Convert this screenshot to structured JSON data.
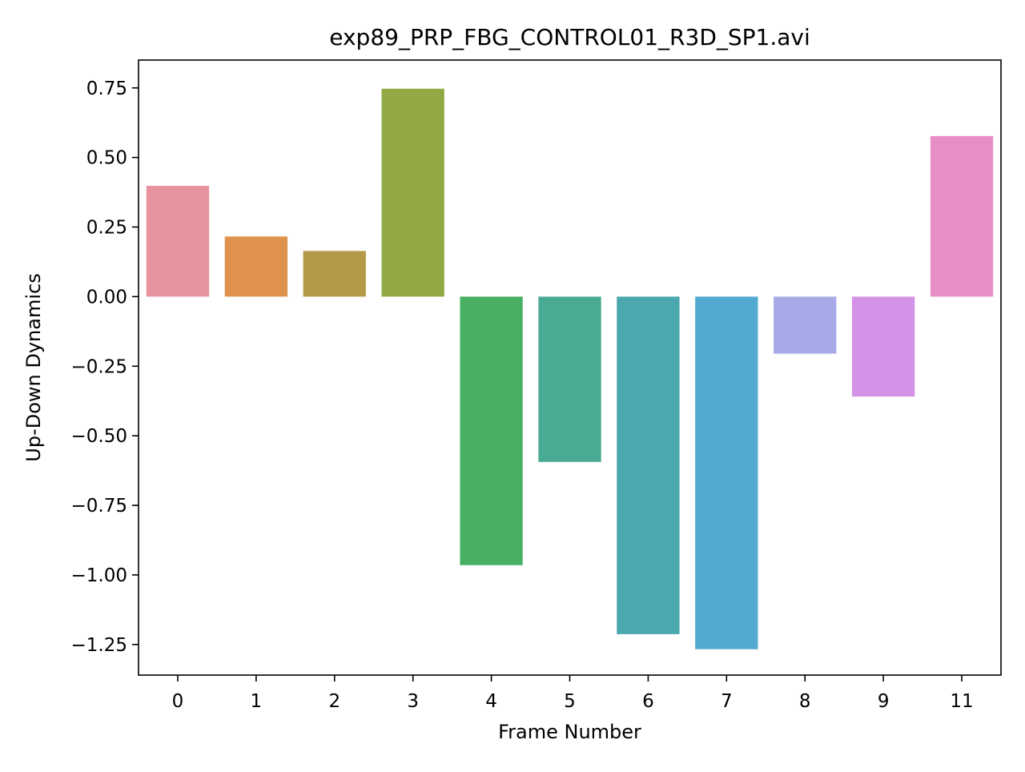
{
  "chart_data": {
    "type": "bar",
    "title": "exp89_PRP_FBG_CONTROL01_R3D_SP1.avi",
    "xlabel": "Frame Number",
    "ylabel": "Up-Down Dynamics",
    "categories": [
      "0",
      "1",
      "2",
      "3",
      "4",
      "5",
      "6",
      "7",
      "8",
      "9",
      "11"
    ],
    "values": [
      0.398,
      0.216,
      0.164,
      0.747,
      -0.965,
      -0.594,
      -1.213,
      -1.267,
      -0.205,
      -0.359,
      0.577
    ],
    "colors": [
      "#e8949f",
      "#de924d",
      "#b39a48",
      "#91a845",
      "#49b063",
      "#4aab95",
      "#4ba8af",
      "#52a9d1",
      "#a8aae8",
      "#d493e6",
      "#e88ec7"
    ],
    "ylim": [
      -1.36,
      0.85
    ],
    "yticks": [
      0.75,
      0.5,
      0.25,
      0.0,
      -0.25,
      -0.5,
      -0.75,
      -1.0,
      -1.25
    ],
    "ytick_labels": [
      "0.75",
      "0.50",
      "0.25",
      "0.00",
      "−0.25",
      "−0.50",
      "−0.75",
      "−1.00",
      "−1.25"
    ],
    "grid": false,
    "legend": "none"
  }
}
